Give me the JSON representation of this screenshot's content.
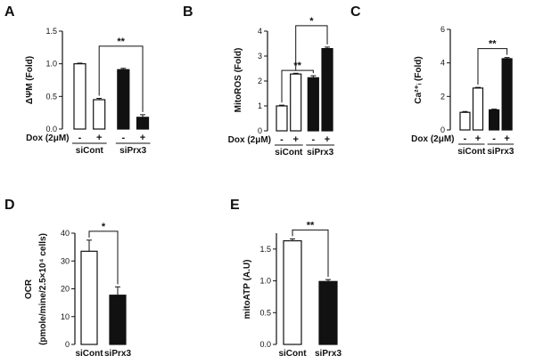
{
  "chart_data": [
    {
      "id": "A",
      "type": "bar",
      "panel_label": "A",
      "ylabel": "ΔΨM (Fold)",
      "ylim": [
        0,
        1.5
      ],
      "yticks": [
        "0.0",
        "0.5",
        "1.0",
        "1.5"
      ],
      "treatment_label": "Dox (2μM)",
      "pm_labels": [
        "-",
        "+",
        "-",
        "+"
      ],
      "groups": [
        "siCont",
        "siPrx3"
      ],
      "series": [
        {
          "name": "bars",
          "values": [
            1.0,
            0.45,
            0.91,
            0.18
          ],
          "errors": [
            0.01,
            0.02,
            0.02,
            0.04
          ],
          "fills": [
            "open",
            "open",
            "filled",
            "filled"
          ]
        }
      ],
      "significance": [
        {
          "from": 1,
          "to": 3,
          "label": "**"
        }
      ]
    },
    {
      "id": "B",
      "type": "bar",
      "panel_label": "B",
      "ylabel": "MitoROS (Fold)",
      "ylim": [
        0,
        4
      ],
      "yticks": [
        "0",
        "1",
        "2",
        "3",
        "4"
      ],
      "treatment_label": "Dox (2μM)",
      "pm_labels": [
        "-",
        "+",
        "-",
        "+"
      ],
      "groups": [
        "siCont",
        "siPrx3"
      ],
      "series": [
        {
          "name": "bars",
          "values": [
            1.0,
            2.28,
            2.13,
            3.3
          ],
          "errors": [
            0.03,
            0.03,
            0.08,
            0.06
          ],
          "fills": [
            "open",
            "open",
            "filled",
            "filled"
          ]
        }
      ],
      "significance": [
        {
          "from": 0,
          "to": 2,
          "label": "**"
        },
        {
          "from": 1,
          "to": 3,
          "label": "*"
        }
      ]
    },
    {
      "id": "C",
      "type": "bar",
      "panel_label": "C",
      "ylabel": "Ca²⁺ᵢ (Fold)",
      "ylim": [
        0,
        6
      ],
      "yticks": [
        "0",
        "2",
        "4",
        "6"
      ],
      "treatment_label": "Dox (2μM)",
      "pm_labels": [
        "-",
        "+",
        "-",
        "+"
      ],
      "groups": [
        "siCont",
        "siPrx3"
      ],
      "series": [
        {
          "name": "bars",
          "values": [
            1.05,
            2.5,
            1.2,
            4.25
          ],
          "errors": [
            0.05,
            0.04,
            0.04,
            0.07
          ],
          "fills": [
            "open",
            "open",
            "filled",
            "filled"
          ]
        }
      ],
      "significance": [
        {
          "from": 1,
          "to": 3,
          "label": "**"
        }
      ]
    },
    {
      "id": "D",
      "type": "bar",
      "panel_label": "D",
      "ylabel": "OCR",
      "ylabel2": "(pmole/mine/2.5×10⁴ cells)",
      "ylim": [
        0,
        40
      ],
      "yticks": [
        "0",
        "10",
        "20",
        "30",
        "40"
      ],
      "categories": [
        "siCont",
        "siPrx3"
      ],
      "series": [
        {
          "name": "bars",
          "values": [
            33.5,
            17.7
          ],
          "errors": [
            4.0,
            3.0
          ],
          "fills": [
            "open",
            "filled"
          ]
        }
      ],
      "significance": [
        {
          "from": 0,
          "to": 1,
          "label": "*"
        }
      ]
    },
    {
      "id": "E",
      "type": "bar",
      "panel_label": "E",
      "ylabel": "mitoATP (A.U)",
      "ylim": [
        0,
        1.75
      ],
      "yticks": [
        "0.0",
        "0.5",
        "1.0",
        "1.5"
      ],
      "categories": [
        "siCont",
        "siPrx3"
      ],
      "series": [
        {
          "name": "bars",
          "values": [
            1.63,
            0.99
          ],
          "errors": [
            0.03,
            0.03
          ],
          "fills": [
            "open",
            "filled"
          ]
        }
      ],
      "significance": [
        {
          "from": 0,
          "to": 1,
          "label": "**"
        }
      ]
    }
  ]
}
